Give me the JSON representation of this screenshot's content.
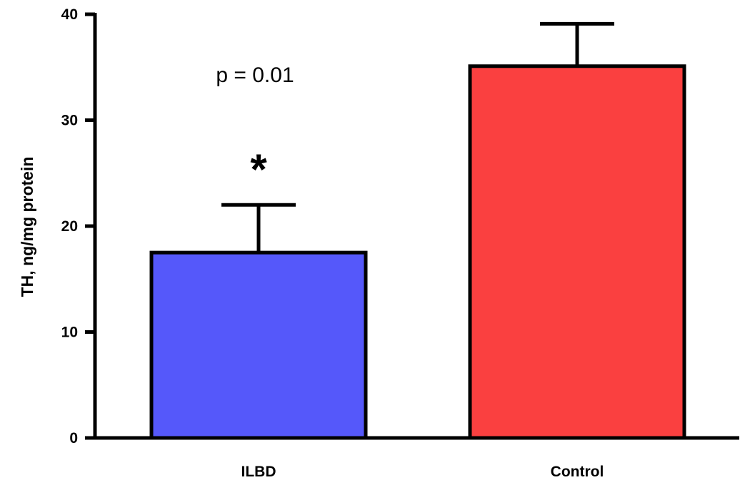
{
  "chart_data": {
    "type": "bar",
    "categories": [
      "ILBD",
      "Control"
    ],
    "values": [
      17.5,
      35.1
    ],
    "error_upper": [
      22.0,
      39.1
    ],
    "colors": [
      "#5558fa",
      "#fa4040"
    ],
    "ylabel": "TH, ng/mg protein",
    "xlabel": "",
    "ylim": [
      0,
      40
    ],
    "yticks": [
      0,
      10,
      20,
      30,
      40
    ],
    "ytick_labels": [
      "0",
      "10",
      "20",
      "30",
      "40"
    ],
    "grid": false,
    "annotations": {
      "p_value": "p = 0.01",
      "significance_mark": "*"
    }
  }
}
